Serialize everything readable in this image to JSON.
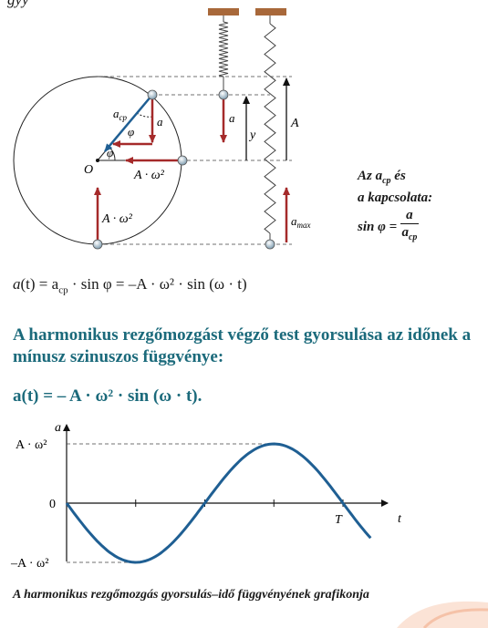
{
  "top_fragment": "gyy",
  "diagram": {
    "origin_label": "O",
    "phi_label": "φ",
    "acp_label": "a",
    "acp_sub": "cp",
    "a_label": "a",
    "y_label": "y",
    "amplitude_label": "A",
    "accel_label": "A · ω²",
    "amax_label": "a",
    "amax_sub": "max"
  },
  "relation": {
    "line1_pre": "Az a",
    "line1_sub": "cp",
    "line1_post": " és",
    "line2": "a kapcsolata:",
    "line3_pre": "sin φ = ",
    "numerator": "a",
    "denominator": "a",
    "denominator_sub": "cp"
  },
  "formula1": {
    "a": "a",
    "t": "(t) = a",
    "sub": "cp",
    "rest": " · sin φ = –A · ω² · sin (ω · t)"
  },
  "heading": "A harmonikus rezgőmozgást végző test gyorsulása az időnek a mínusz szinuszos függvénye:",
  "formula2": "a(t) = – A · ω² · sin (ω · t).",
  "graph": {
    "y_axis_label": "a",
    "x_axis_label": "t",
    "y_max_label": "A · ω²",
    "y_zero_label": "0",
    "y_min_label": "–A · ω²",
    "period_label": "T"
  },
  "caption": "A harmonikus rezgőmozgás gyorsulás–idő függvényének grafikonja",
  "colors": {
    "teal": "#1b6a7b",
    "red": "#a52a2a",
    "blue": "#1f5f93",
    "wood": "#a8683a"
  },
  "chart_data": {
    "type": "line",
    "title": "A harmonikus rezgőmozgás gyorsulás–idő függvényének grafikonja",
    "xlabel": "t",
    "ylabel": "a",
    "function": "a(t) = -A·ω²·sin(ω·t)",
    "x_range_periods": [
      0,
      1.15
    ],
    "ylim_labels": [
      "–A · ω²",
      "0",
      "A · ω²"
    ],
    "x_tick_labels": [
      "T"
    ],
    "series": [
      {
        "name": "a(t)",
        "x_fraction_of_T": [
          0,
          0.125,
          0.25,
          0.375,
          0.5,
          0.625,
          0.75,
          0.875,
          1.0,
          1.125
        ],
        "y_fraction_of_max": [
          0,
          -0.707,
          -1,
          -0.707,
          0,
          0.707,
          1,
          0.707,
          0,
          -0.707
        ]
      }
    ]
  }
}
